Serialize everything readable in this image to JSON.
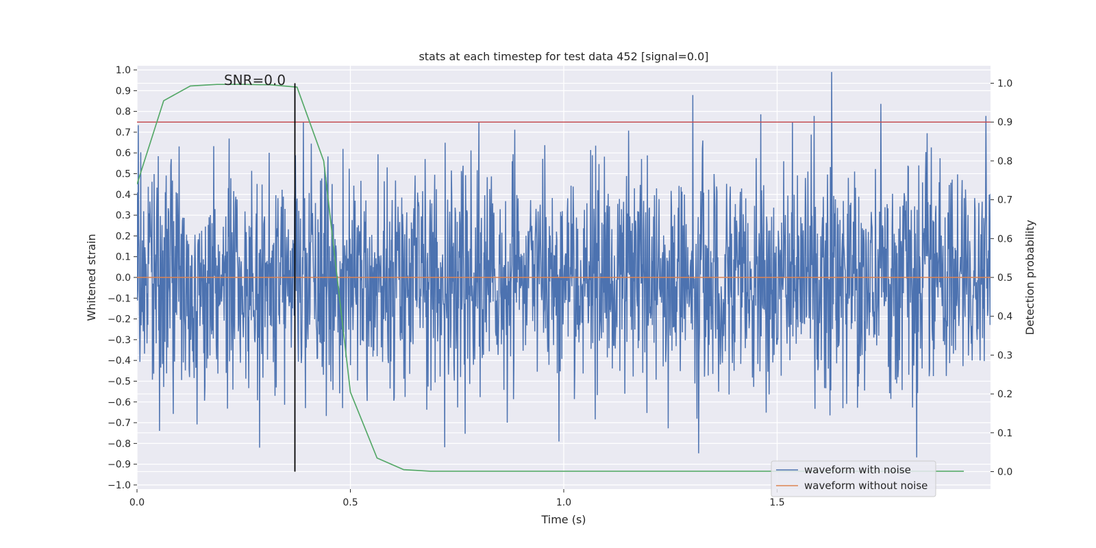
{
  "chart_data": {
    "type": "line",
    "title": "stats at each timestep for test data 452 [signal=0.0]",
    "xlabel": "Time (s)",
    "ylabel": "Whitened strain",
    "y2label": "Detection probability",
    "xlim": [
      0.0,
      2.0
    ],
    "ylim": [
      -1.02,
      1.02
    ],
    "y2lim": [
      -0.045,
      1.045
    ],
    "xticks": [
      0.0,
      0.5,
      1.0,
      1.5
    ],
    "xtick_labels": [
      "0.0",
      "0.5",
      "1.0",
      "1.5"
    ],
    "yticks": [
      1.0,
      0.9,
      0.8,
      0.7,
      0.6,
      0.5,
      0.4,
      0.3,
      0.2,
      0.1,
      0.0,
      -0.1,
      -0.2,
      -0.3,
      -0.4,
      -0.5,
      -0.6,
      -0.7,
      -0.8,
      -0.9,
      -1.0
    ],
    "ytick_labels": [
      "1.0",
      "0.9",
      "0.8",
      "0.7",
      "0.6",
      "0.5",
      "0.4",
      "0.3",
      "0.2",
      "0.1",
      "0.0",
      "−0.1",
      "−0.2",
      "−0.3",
      "−0.4",
      "−0.5",
      "−0.6",
      "−0.7",
      "−0.8",
      "−0.9",
      "−1.0"
    ],
    "y2ticks": [
      1.0,
      0.9,
      0.8,
      0.7,
      0.6,
      0.5,
      0.4,
      0.3,
      0.2,
      0.1,
      0.0
    ],
    "y2tick_labels": [
      "1.0",
      "0.9",
      "0.8",
      "0.7",
      "0.6",
      "0.5",
      "0.4",
      "0.3",
      "0.2",
      "0.1",
      "0.0"
    ],
    "annotation": {
      "text": "SNR=0.0",
      "x": 0.37
    },
    "threshold": {
      "y2": 0.9,
      "color": "#c44e52"
    },
    "series": [
      {
        "name": "waveform with noise",
        "color": "#4c72b0",
        "axis": "left",
        "x_range": [
          0.0,
          2.0
        ],
        "n_points": 2048,
        "amplitude_std": 0.26,
        "min": -0.9,
        "max": 1.0
      },
      {
        "name": "waveform without noise",
        "color": "#dd8452",
        "axis": "left",
        "x": [
          0.0,
          2.0
        ],
        "y": [
          0.0,
          0.0
        ]
      },
      {
        "name": "Detection probability",
        "color": "#55a868",
        "axis": "right",
        "legend": false,
        "x": [
          0.0,
          0.0625,
          0.125,
          0.1875,
          0.25,
          0.3125,
          0.375,
          0.4375,
          0.5,
          0.5625,
          0.625,
          0.6875,
          0.75,
          0.8125,
          0.875,
          0.9375,
          1.0,
          1.0625,
          1.125,
          1.1875,
          1.25,
          1.3125,
          1.375,
          1.4375,
          1.5,
          1.5625,
          1.625,
          1.6875,
          1.75,
          1.8125,
          1.875,
          1.9375
        ],
        "y": [
          0.74,
          0.955,
          0.993,
          0.997,
          0.997,
          0.996,
          0.99,
          0.8,
          0.205,
          0.035,
          0.005,
          0.001,
          0.001,
          0.001,
          0.001,
          0.001,
          0.001,
          0.001,
          0.001,
          0.001,
          0.001,
          0.001,
          0.001,
          0.001,
          0.001,
          0.001,
          0.001,
          0.001,
          0.001,
          0.001,
          0.001,
          0.001
        ]
      }
    ],
    "legend": {
      "location": "lower-right",
      "entries": [
        "waveform with noise",
        "waveform without noise"
      ]
    },
    "grid": true
  }
}
